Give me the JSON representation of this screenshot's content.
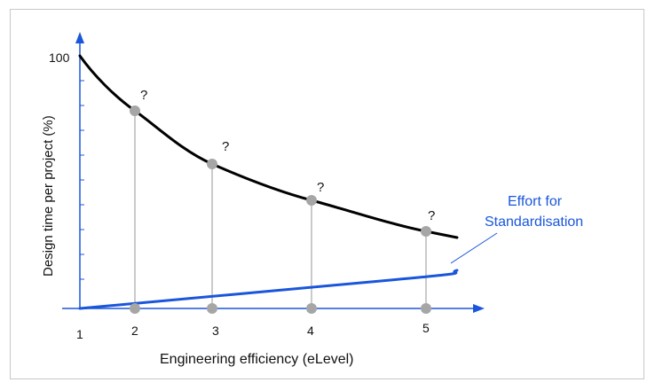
{
  "chart_data": {
    "type": "line",
    "ylabel": "Design time per project (%)",
    "xlabel": "Engineering efficiency (eLevel)",
    "y_tick_label": "100",
    "x_tick_labels": [
      "1",
      "2",
      "3",
      "4",
      "5"
    ],
    "question_mark": "?",
    "annotation": {
      "line1": "Effort for",
      "line2": "Standardisation"
    },
    "series": [
      {
        "values_at_ticks": [
          100,
          78,
          57,
          43,
          31
        ]
      },
      {
        "name": "Effort for Standardisation",
        "values_at_ticks": [
          0,
          2,
          5,
          9,
          13
        ]
      }
    ],
    "colors": {
      "design_time_curve": "#000000",
      "standardisation_curve": "#1a56db",
      "axes": "#1a56db",
      "markers": "#a6a6a6",
      "drop_lines": "#b8b8b8",
      "annotation_text": "#1a56db"
    }
  }
}
